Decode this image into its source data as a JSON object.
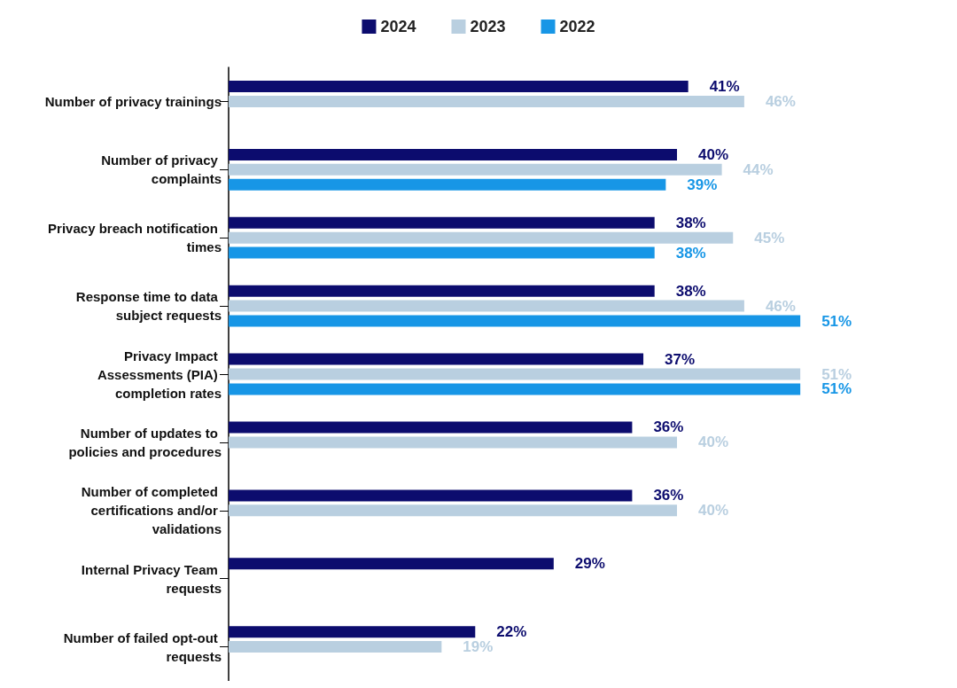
{
  "chart_data": {
    "type": "bar",
    "orientation": "horizontal",
    "categories": [
      "Number of privacy trainings",
      "Number of privacy complaints",
      "Privacy breach notification times",
      "Response time to data subject requests",
      "Privacy Impact Assessments (PIA) completion rates",
      "Number of updates to policies and procedures",
      "Number of completed certifications and/or validations",
      "Internal Privacy Team requests",
      "Number of failed opt-out requests"
    ],
    "series": [
      {
        "name": "2024",
        "color": "#0c0c6e",
        "values": [
          41,
          40,
          38,
          38,
          37,
          36,
          36,
          29,
          22
        ],
        "value_labels": [
          "41%",
          "40%",
          "38%",
          "38%",
          "37%",
          "36%",
          "36%",
          "29%",
          "22%"
        ]
      },
      {
        "name": "2023",
        "color": "#b9cfe0",
        "values": [
          46,
          44,
          45,
          46,
          51,
          40,
          40,
          null,
          19
        ],
        "value_labels": [
          "46%",
          "44%",
          "45%",
          "46%",
          "51%",
          "40%",
          "40%",
          null,
          "19%"
        ]
      },
      {
        "name": "2022",
        "color": "#1796e6",
        "values": [
          null,
          39,
          38,
          51,
          51,
          null,
          null,
          null,
          null
        ],
        "value_labels": [
          null,
          "39%",
          "38%",
          "51%",
          "51%",
          null,
          null,
          null,
          null
        ]
      }
    ],
    "legend": "top",
    "grid": false,
    "tick_labels": "y"
  }
}
